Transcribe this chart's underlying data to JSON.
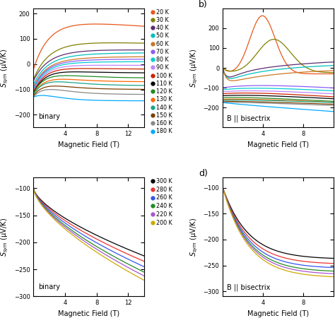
{
  "figsize": [
    4.74,
    4.74
  ],
  "dpi": 100,
  "temps_ab": [
    20,
    30,
    40,
    50,
    60,
    70,
    80,
    90,
    100,
    110,
    120,
    130,
    140,
    150,
    160,
    180
  ],
  "temps_cd": [
    300,
    280,
    260,
    240,
    220,
    200
  ],
  "colors_ab": {
    "20": "#E8581A",
    "30": "#808000",
    "40": "#5B2C6F",
    "50": "#00BFBF",
    "60": "#CC7722",
    "70": "#8B5CF6",
    "80": "#00CED1",
    "90": "#C084FC",
    "100": "#CC2200",
    "110": "#000000",
    "120": "#228B22",
    "130": "#FF6600",
    "140": "#17A589",
    "150": "#7B3F00",
    "160": "#888888",
    "180": "#00AAFF"
  },
  "colors_cd": {
    "300": "#000000",
    "280": "#EE3333",
    "260": "#3355EE",
    "240": "#228B22",
    "220": "#AA55CC",
    "200": "#CCAA00"
  },
  "panel_a_ylim": [
    -250,
    220
  ],
  "panel_b_ylim": [
    -300,
    300
  ],
  "panel_c_ylim": [
    -310,
    -80
  ],
  "panel_d_ylim": [
    -310,
    -80
  ],
  "B_ab_max": 14,
  "B_cd_max": 14,
  "B_bisectrix_max": 11
}
